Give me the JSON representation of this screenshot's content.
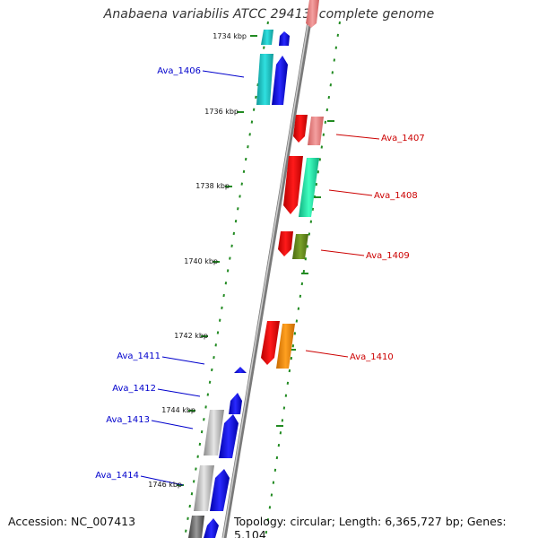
{
  "header": {
    "title": "Anabaena variabilis ATCC 29413, complete genome"
  },
  "footer": {
    "accession": "Accession: NC_007413",
    "topology": "Topology: circular; Length: 6,365,727 bp; Genes: 5,104"
  },
  "colors": {
    "axis": "#8a8a8a",
    "tick_mark": "#228b22",
    "label_left": "#0000cc",
    "label_right": "#cc0000",
    "kbp_text": "#111111"
  },
  "kbp_labels": [
    "1734 kbp",
    "1736 kbp",
    "1738 kbp",
    "1740 kbp",
    "1742 kbp",
    "1744 kbp",
    "1746 kbp"
  ],
  "genes_left": [
    {
      "name": "Ava_1406",
      "color": "#0000cc"
    },
    {
      "name": "Ava_1411",
      "color": "#0000cc"
    },
    {
      "name": "Ava_1412",
      "color": "#0000cc"
    },
    {
      "name": "Ava_1413",
      "color": "#0000cc"
    },
    {
      "name": "Ava_1414",
      "color": "#0000cc"
    }
  ],
  "genes_right": [
    {
      "name": "Ava_1407",
      "color": "#cc0000"
    },
    {
      "name": "Ava_1408",
      "color": "#cc0000"
    },
    {
      "name": "Ava_1409",
      "color": "#cc0000"
    },
    {
      "name": "Ava_1410",
      "color": "#cc0000"
    }
  ]
}
